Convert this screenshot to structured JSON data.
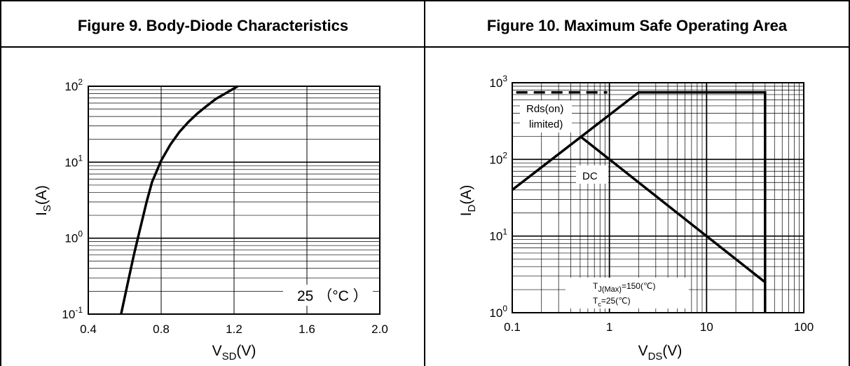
{
  "figure9": {
    "title": "Figure 9. Body-Diode Characteristics",
    "chart_data": {
      "type": "line",
      "xscale": "linear",
      "yscale": "log",
      "xlim": [
        0.4,
        2.0
      ],
      "ylim": [
        0.1,
        100
      ],
      "xticks": [
        "0.4",
        "0.8",
        "1.2",
        "1.6",
        "2.0"
      ],
      "xticks_values": [
        0.4,
        0.8,
        1.2,
        1.6,
        2.0
      ],
      "yticks_values": [
        0.1,
        1,
        10,
        100
      ],
      "ytick_base": "10",
      "ytick_exponents": [
        "-1",
        "0",
        "1",
        "2"
      ],
      "xlabel_main": "V",
      "xlabel_sub": "SD",
      "xlabel_unit": "(V)",
      "ylabel_main": "I",
      "ylabel_sub": "S",
      "ylabel_unit": "(A)",
      "grid": true,
      "series": [
        {
          "x": [
            0.58,
            0.62,
            0.65,
            0.68,
            0.72,
            0.75,
            0.8,
            0.85,
            0.9,
            0.95,
            1.0,
            1.05,
            1.1,
            1.17,
            1.22
          ],
          "y": [
            0.1,
            0.28,
            0.6,
            1.2,
            3.0,
            5.5,
            10.5,
            17,
            25,
            34,
            44,
            55,
            68,
            85,
            100
          ]
        }
      ],
      "annotation": "25 （°C ）"
    }
  },
  "figure10": {
    "title": "Figure 10. Maximum Safe Operating Area",
    "chart_data": {
      "type": "line",
      "xscale": "log",
      "yscale": "log",
      "xlim": [
        0.1,
        100
      ],
      "ylim": [
        1,
        1000
      ],
      "xticks": [
        "0.1",
        "1",
        "10",
        "100"
      ],
      "xticks_values": [
        0.1,
        1,
        10,
        100
      ],
      "yticks_values": [
        1,
        10,
        100,
        1000
      ],
      "ytick_base": "10",
      "ytick_exponents": [
        "0",
        "1",
        "2",
        "3"
      ],
      "xlabel_main": "V",
      "xlabel_sub": "DS",
      "xlabel_unit": "(V)",
      "ylabel_main": "I",
      "ylabel_sub": "D",
      "ylabel_unit": "(A)",
      "grid": true,
      "series": [
        {
          "x": [
            0.1,
            2,
            40,
            40
          ],
          "y": [
            40,
            750,
            750,
            1
          ]
        },
        {
          "x": [
            0.5,
            1,
            10,
            40
          ],
          "y": [
            200,
            100,
            10,
            2.5
          ]
        },
        {
          "x": [
            0.11,
            0.95
          ],
          "y": [
            750,
            750
          ],
          "dashed": true
        }
      ],
      "annotations": {
        "rds_line1": "Rds(on)",
        "rds_line2": "limited)",
        "dc": "DC",
        "tj_main": "T",
        "tj_sub": "J(Max)",
        "tj_value": "=150(℃)",
        "tc_main": "T",
        "tc_sub": "c",
        "tc_value": "=25(℃)"
      }
    }
  }
}
